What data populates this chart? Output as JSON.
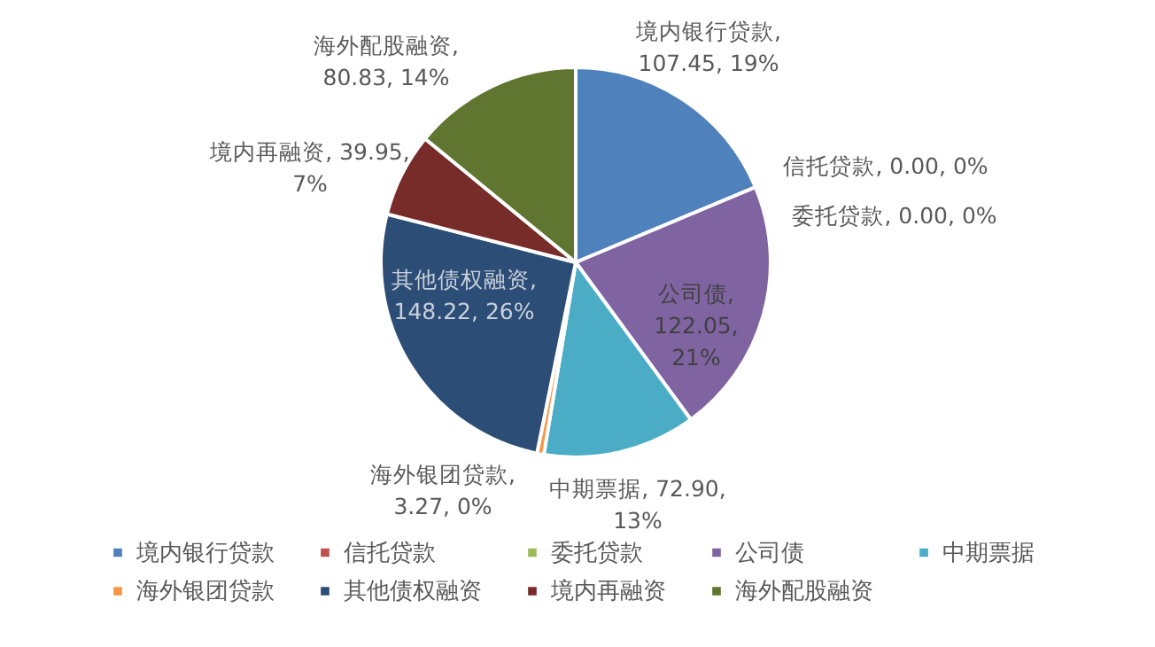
{
  "chart_data": {
    "type": "pie",
    "categories": [
      "境内银行贷款",
      "信托贷款",
      "委托贷款",
      "公司债",
      "中期票据",
      "海外银团贷款",
      "其他债权融资",
      "境内再融资",
      "海外配股融资"
    ],
    "values": [
      107.45,
      0.0,
      0.0,
      122.05,
      72.9,
      3.27,
      148.22,
      39.95,
      80.83
    ],
    "colors": [
      "#4f81bd",
      "#c0504d",
      "#9bbb59",
      "#8064a2",
      "#4bacc6",
      "#f79646",
      "#2c4d75",
      "#772c2a",
      "#5f7530"
    ],
    "value_labels": [
      "境内银行贷款, 107.45, 19%",
      "信托贷款, 0.00, 0%",
      "委托贷款, 0.00, 0%",
      "公司债, 122.05, 21%",
      "中期票据, 72.90, 13%",
      "海外银团贷款, 3.27, 0%",
      "其他债权融资, 148.22, 26%",
      "境内再融资, 39.95, 7%",
      "海外配股融资, 80.83, 14%"
    ],
    "legend": "bottom"
  }
}
